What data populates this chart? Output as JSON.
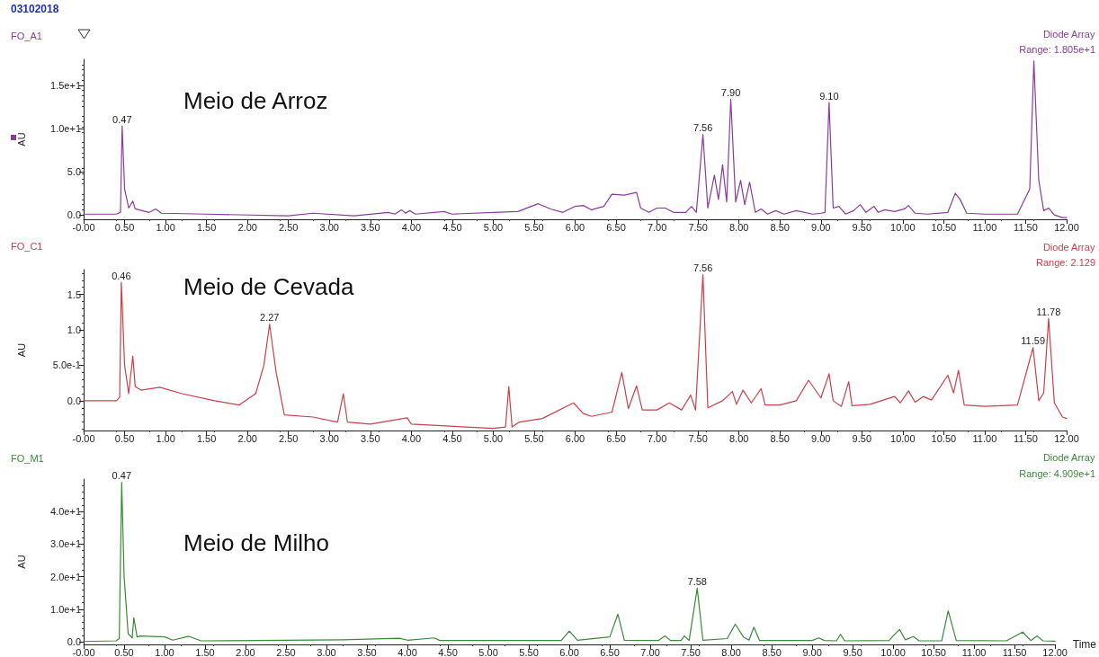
{
  "chart_data": [
    {
      "type": "line",
      "title": "03102018",
      "ylabel": "AU",
      "grid": false,
      "marker": "none",
      "line_style": "solid",
      "xlim": [
        0,
        12
      ],
      "ylim": [
        -0.5,
        18
      ],
      "xticks": [
        {
          "value": 0,
          "label": "-0.00"
        },
        {
          "value": 0.5,
          "label": "0.50"
        },
        {
          "value": 1,
          "label": "1.00"
        },
        {
          "value": 1.5,
          "label": "1.50"
        },
        {
          "value": 2,
          "label": "2.00"
        },
        {
          "value": 2.5,
          "label": "2.50"
        },
        {
          "value": 3,
          "label": "3.00"
        },
        {
          "value": 3.5,
          "label": "3.50"
        },
        {
          "value": 4,
          "label": "4.00"
        },
        {
          "value": 4.5,
          "label": "4.50"
        },
        {
          "value": 5,
          "label": "5.00"
        },
        {
          "value": 5.5,
          "label": "5.50"
        },
        {
          "value": 6,
          "label": "6.00"
        },
        {
          "value": 6.5,
          "label": "6.50"
        },
        {
          "value": 7,
          "label": "7.00"
        },
        {
          "value": 7.5,
          "label": "7.50"
        },
        {
          "value": 8,
          "label": "8.00"
        },
        {
          "value": 8.5,
          "label": "8.50"
        },
        {
          "value": 9,
          "label": "9.00"
        },
        {
          "value": 9.5,
          "label": "9.50"
        },
        {
          "value": 10,
          "label": "10.00"
        },
        {
          "value": 10.5,
          "label": "10.50"
        },
        {
          "value": 11,
          "label": "11.00"
        },
        {
          "value": 11.5,
          "label": "11.50"
        },
        {
          "value": 12,
          "label": "12.00"
        }
      ],
      "yticks": [
        {
          "value": 0,
          "label": "0.0"
        },
        {
          "value": 5,
          "label": "5.0"
        },
        {
          "value": 10,
          "label": "1.0e+1"
        },
        {
          "value": 15,
          "label": "1.5e+1"
        }
      ],
      "x": [
        0,
        0.4,
        0.45,
        0.47,
        0.5,
        0.55,
        0.6,
        0.63,
        0.8,
        0.88,
        0.95,
        1.5,
        2.5,
        2.8,
        3.3,
        3.72,
        3.8,
        3.88,
        3.93,
        3.98,
        4.05,
        4.4,
        4.5,
        5.0,
        5.3,
        5.55,
        5.7,
        5.85,
        6.0,
        6.1,
        6.2,
        6.35,
        6.45,
        6.6,
        6.75,
        6.8,
        6.9,
        7.0,
        7.1,
        7.2,
        7.35,
        7.42,
        7.48,
        7.56,
        7.62,
        7.7,
        7.75,
        7.8,
        7.85,
        7.9,
        7.96,
        8.02,
        8.07,
        8.13,
        8.2,
        8.27,
        8.35,
        8.45,
        8.55,
        8.7,
        8.9,
        9.0,
        9.05,
        9.1,
        9.15,
        9.22,
        9.3,
        9.4,
        9.48,
        9.55,
        9.65,
        9.7,
        9.78,
        9.9,
        10.02,
        10.07,
        10.15,
        10.3,
        10.55,
        10.64,
        10.7,
        10.78,
        11.0,
        11.4,
        11.55,
        11.6,
        11.66,
        11.72,
        11.78,
        11.85,
        11.95,
        12
      ],
      "series": [
        {
          "color": "#8a3c9a",
          "values": [
            0.1,
            0.1,
            0.3,
            10.3,
            3,
            0.8,
            1.6,
            0.7,
            0.3,
            0.7,
            0.2,
            0.1,
            -0.1,
            0.2,
            -0.1,
            0.3,
            0.1,
            0.6,
            0.2,
            0.5,
            0.1,
            0.4,
            0.1,
            0.3,
            0.4,
            1.3,
            0.7,
            0.3,
            1.0,
            1.1,
            0.6,
            1.0,
            2.4,
            2.3,
            2.6,
            0.8,
            0.3,
            0.8,
            0.8,
            0.3,
            0.3,
            1.0,
            0.3,
            9.3,
            0.8,
            4.6,
            1.8,
            5.8,
            1.5,
            13.4,
            1.5,
            4.0,
            1.2,
            3.8,
            0.3,
            0.7,
            0.1,
            0.5,
            0.1,
            0.5,
            0.1,
            0.2,
            0.3,
            13.0,
            0.8,
            1.0,
            0.1,
            0.5,
            1.2,
            0.3,
            1.0,
            0.3,
            0.6,
            0.4,
            0.7,
            1.1,
            0.2,
            0.1,
            0.3,
            2.5,
            1.8,
            0.2,
            0.1,
            0.1,
            3,
            17.8,
            4,
            0.5,
            0.8,
            0,
            -0.3,
            -0.3
          ]
        }
      ],
      "annotations": [
        "FO_A1",
        "Diode Array",
        "Range: 1.805e+1",
        "Meio de Arroz",
        {
          "text": "0.47",
          "x": 0.47,
          "y": 10.3
        },
        {
          "text": "7.56",
          "x": 7.56,
          "y": 9.3
        },
        {
          "text": "7.90",
          "x": 7.9,
          "y": 13.4
        },
        {
          "text": "9.10",
          "x": 9.1,
          "y": 13.0
        }
      ]
    },
    {
      "type": "line",
      "ylabel": "AU",
      "grid": false,
      "marker": "none",
      "line_style": "solid",
      "xlim": [
        0,
        12
      ],
      "ylim": [
        -0.42,
        1.85
      ],
      "xticks": [
        {
          "value": 0,
          "label": "-0.00"
        },
        {
          "value": 0.5,
          "label": "0.50"
        },
        {
          "value": 1,
          "label": "1.00"
        },
        {
          "value": 1.5,
          "label": "1.50"
        },
        {
          "value": 2,
          "label": "2.00"
        },
        {
          "value": 2.5,
          "label": "2.50"
        },
        {
          "value": 3,
          "label": "3.00"
        },
        {
          "value": 3.5,
          "label": "3.50"
        },
        {
          "value": 4,
          "label": "4.00"
        },
        {
          "value": 4.5,
          "label": "4.50"
        },
        {
          "value": 5,
          "label": "5.00"
        },
        {
          "value": 5.5,
          "label": "5.50"
        },
        {
          "value": 6,
          "label": "6.00"
        },
        {
          "value": 6.5,
          "label": "6.50"
        },
        {
          "value": 7,
          "label": "7.00"
        },
        {
          "value": 7.5,
          "label": "7.50"
        },
        {
          "value": 8,
          "label": "8.00"
        },
        {
          "value": 8.5,
          "label": "8.50"
        },
        {
          "value": 9,
          "label": "9.00"
        },
        {
          "value": 9.5,
          "label": "9.50"
        },
        {
          "value": 10,
          "label": "10.00"
        },
        {
          "value": 10.5,
          "label": "10.50"
        },
        {
          "value": 11,
          "label": "11.00"
        },
        {
          "value": 11.5,
          "label": "11.50"
        },
        {
          "value": 12,
          "label": "12.00"
        }
      ],
      "yticks": [
        {
          "value": 0,
          "label": "0.0"
        },
        {
          "value": 0.5,
          "label": "5.0e-1"
        },
        {
          "value": 1,
          "label": "1.0"
        },
        {
          "value": 1.5,
          "label": "1.5"
        }
      ],
      "x": [
        0,
        0.4,
        0.44,
        0.46,
        0.5,
        0.55,
        0.6,
        0.63,
        0.7,
        0.93,
        1.2,
        1.6,
        1.9,
        2.1,
        2.2,
        2.27,
        2.35,
        2.45,
        2.8,
        3.1,
        3.17,
        3.22,
        3.5,
        3.95,
        4.0,
        5.0,
        5.15,
        5.19,
        5.23,
        5.32,
        5.6,
        5.98,
        6.1,
        6.2,
        6.45,
        6.57,
        6.65,
        6.75,
        6.82,
        7.0,
        7.15,
        7.3,
        7.41,
        7.47,
        7.56,
        7.62,
        7.8,
        7.92,
        7.97,
        8.05,
        8.15,
        8.27,
        8.32,
        8.5,
        8.7,
        8.85,
        9.0,
        9.1,
        9.15,
        9.25,
        9.34,
        9.38,
        9.6,
        9.9,
        9.97,
        10.07,
        10.15,
        10.25,
        10.35,
        10.55,
        10.62,
        10.68,
        10.75,
        11.0,
        11.4,
        11.59,
        11.66,
        11.72,
        11.78,
        11.85,
        11.95,
        12
      ],
      "series": [
        {
          "color": "#c8414b",
          "values": [
            0,
            0,
            0.05,
            1.67,
            0.5,
            0.1,
            0.63,
            0.2,
            0.15,
            0.19,
            0.1,
            0.0,
            -0.06,
            0.1,
            0.5,
            1.08,
            0.4,
            -0.2,
            -0.23,
            -0.3,
            0.1,
            -0.3,
            -0.33,
            -0.24,
            -0.33,
            -0.39,
            -0.37,
            0.2,
            -0.37,
            -0.3,
            -0.25,
            -0.03,
            -0.18,
            -0.22,
            -0.16,
            0.4,
            -0.11,
            0.21,
            -0.13,
            -0.13,
            -0.03,
            -0.13,
            0.08,
            -0.13,
            1.78,
            -0.1,
            0.0,
            0.13,
            -0.05,
            0.15,
            -0.03,
            0.17,
            -0.06,
            -0.06,
            0.0,
            0.29,
            0.04,
            0.38,
            0.0,
            -0.08,
            0.27,
            -0.07,
            -0.05,
            0.06,
            -0.03,
            0.14,
            -0.02,
            0.06,
            0.01,
            0.36,
            0.11,
            0.43,
            -0.06,
            -0.08,
            -0.06,
            0.75,
            0.0,
            0.11,
            1.16,
            -0.03,
            -0.23,
            -0.25
          ]
        }
      ],
      "annotations": [
        "FO_C1",
        "Diode Array",
        "Range: 2.129",
        "Meio de Cevada",
        {
          "text": "0.46",
          "x": 0.46,
          "y": 1.67
        },
        {
          "text": "2.27",
          "x": 2.27,
          "y": 1.08
        },
        {
          "text": "7.56",
          "x": 7.56,
          "y": 1.78
        },
        {
          "text": "11.59",
          "x": 11.59,
          "y": 0.75
        },
        {
          "text": "11.78",
          "x": 11.78,
          "y": 1.16
        }
      ]
    },
    {
      "type": "line",
      "ylabel": "AU",
      "xlabel": "Time",
      "grid": false,
      "marker": "none",
      "line_style": "solid",
      "xlim": [
        0,
        12
      ],
      "ylim": [
        -0.8,
        50
      ],
      "xticks": [
        {
          "value": 0,
          "label": "-0.00"
        },
        {
          "value": 0.5,
          "label": "0.50"
        },
        {
          "value": 1,
          "label": "1.00"
        },
        {
          "value": 1.5,
          "label": "1.50"
        },
        {
          "value": 2,
          "label": "2.00"
        },
        {
          "value": 2.5,
          "label": "2.50"
        },
        {
          "value": 3,
          "label": "3.00"
        },
        {
          "value": 3.5,
          "label": "3.50"
        },
        {
          "value": 4,
          "label": "4.00"
        },
        {
          "value": 4.5,
          "label": "4.50"
        },
        {
          "value": 5,
          "label": "5.00"
        },
        {
          "value": 5.5,
          "label": "5.50"
        },
        {
          "value": 6,
          "label": "6.00"
        },
        {
          "value": 6.5,
          "label": "6.50"
        },
        {
          "value": 7,
          "label": "7.00"
        },
        {
          "value": 7.5,
          "label": "7.50"
        },
        {
          "value": 8,
          "label": "8.00"
        },
        {
          "value": 8.5,
          "label": "8.50"
        },
        {
          "value": 9,
          "label": "9.00"
        },
        {
          "value": 9.5,
          "label": "9.50"
        },
        {
          "value": 10,
          "label": "10.00"
        },
        {
          "value": 10.5,
          "label": "10.50"
        },
        {
          "value": 11,
          "label": "11.00"
        },
        {
          "value": 11.5,
          "label": "11.50"
        },
        {
          "value": 12,
          "label": "12.00"
        }
      ],
      "yticks": [
        {
          "value": 0,
          "label": "0.0"
        },
        {
          "value": 10,
          "label": "1.0e+1"
        },
        {
          "value": 20,
          "label": "2.0e+1"
        },
        {
          "value": 30,
          "label": "3.0e+1"
        },
        {
          "value": 40,
          "label": "4.0e+1"
        }
      ],
      "x": [
        0,
        0.4,
        0.44,
        0.47,
        0.5,
        0.55,
        0.6,
        0.62,
        0.66,
        0.7,
        1.0,
        1.1,
        1.3,
        1.45,
        3.2,
        3.9,
        4.0,
        4.33,
        4.4,
        5.9,
        6.0,
        6.1,
        6.5,
        6.6,
        6.68,
        7.1,
        7.18,
        7.25,
        7.38,
        7.42,
        7.48,
        7.58,
        7.65,
        7.95,
        8.05,
        8.15,
        8.22,
        8.28,
        8.35,
        9.0,
        9.08,
        9.15,
        9.3,
        9.35,
        9.4,
        9.95,
        10.0,
        10.08,
        10.15,
        10.25,
        10.32,
        10.6,
        10.68,
        10.78,
        11.4,
        11.6,
        11.7,
        11.78,
        11.85,
        12
      ],
      "series": [
        {
          "color": "#3a8a3a",
          "values": [
            0.1,
            0.3,
            1.0,
            49,
            20,
            2.5,
            1.2,
            7.4,
            1.5,
            1.8,
            1.5,
            0.5,
            1.7,
            0.3,
            0.6,
            1.1,
            0.5,
            1.2,
            0.4,
            0.4,
            3.3,
            0.5,
            1.5,
            8.5,
            0.5,
            0.4,
            1.8,
            0.4,
            0.4,
            1.8,
            0.4,
            16.5,
            0.5,
            1.0,
            5.4,
            1.5,
            0.5,
            4.5,
            0.4,
            0.4,
            1.2,
            0.4,
            0.3,
            2.3,
            0.3,
            0.4,
            1.8,
            3.8,
            0.6,
            1.6,
            0.3,
            0.3,
            9.5,
            0.4,
            0.3,
            3.0,
            0.4,
            1.8,
            0.3,
            0.2
          ]
        }
      ],
      "annotations": [
        "FO_M1",
        "Diode Array",
        "Range: 4.909e+1",
        "Meio de Milho",
        {
          "text": "0.47",
          "x": 0.47,
          "y": 49
        },
        {
          "text": "7.58",
          "x": 7.58,
          "y": 16.5
        }
      ]
    }
  ]
}
